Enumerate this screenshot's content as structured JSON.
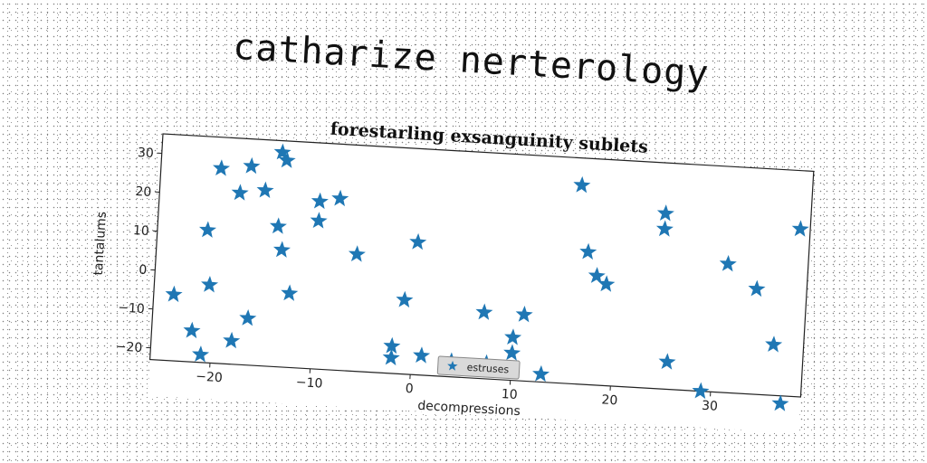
{
  "page": {
    "title": "catharize nerterology"
  },
  "chart_data": {
    "type": "scatter",
    "title": "forestarling exsanguinity sublets",
    "xlabel": "decompressions",
    "ylabel": "tantalums",
    "xlim": [
      -26,
      39
    ],
    "ylim": [
      -23,
      35
    ],
    "xticks": [
      -20,
      -10,
      0,
      10,
      20,
      30
    ],
    "yticks": [
      -20,
      -10,
      0,
      10,
      20,
      30
    ],
    "grid": false,
    "legend_position": "bottom-center",
    "series": [
      {
        "name": "estruses",
        "marker": "star",
        "color": "#1f77b4",
        "x": [
          -14,
          -13.5,
          -17,
          -20,
          -15.5,
          -18,
          -10,
          -8,
          -21,
          -14,
          -10,
          -13.5,
          -6,
          -12.5,
          -20.5,
          -24,
          -16.5,
          -22,
          -18,
          -21,
          0,
          -1,
          -2,
          -2,
          1,
          4,
          7,
          7.5,
          10,
          10,
          11,
          13,
          16,
          17,
          18,
          19,
          24.5,
          24.5,
          25.5,
          29,
          31,
          34,
          36,
          37,
          38
        ],
        "y": [
          32,
          30,
          28,
          27,
          22,
          21,
          20,
          21,
          11,
          13,
          15,
          7,
          7,
          -4,
          -3,
          -6,
          -11,
          -15,
          -17,
          -21,
          11,
          -4,
          -16,
          -19,
          -18,
          -19,
          -6,
          -19,
          -12,
          -16,
          -6,
          -21,
          28,
          11,
          5,
          3,
          22,
          18,
          -16,
          -23,
          10,
          4,
          -10,
          -25,
          20
        ]
      }
    ]
  }
}
